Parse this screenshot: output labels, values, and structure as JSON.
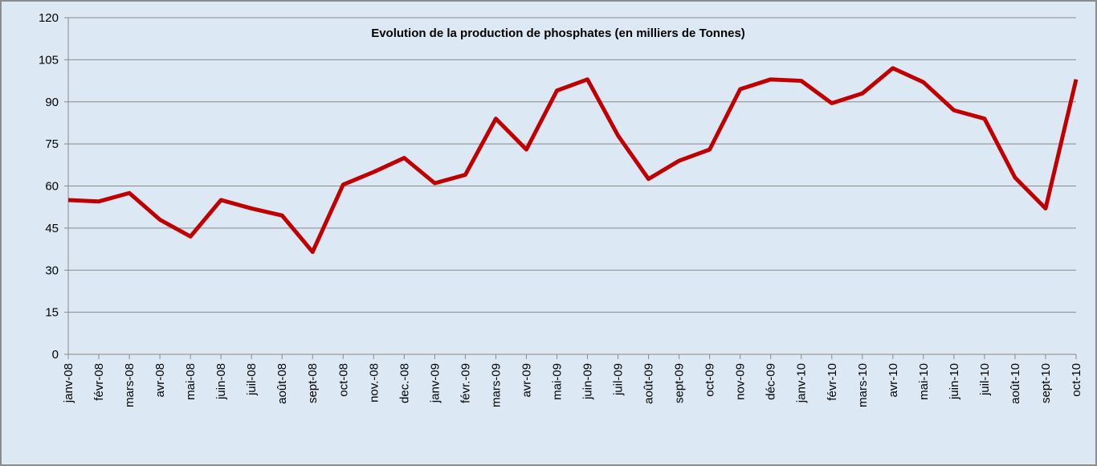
{
  "chart_data": {
    "type": "line",
    "title": "Evolution de la production de phosphates (en milliers de Tonnes)",
    "categories": [
      "janv-08",
      "févr-08",
      "mars-08",
      "avr-08",
      "mai-08",
      "juin-08",
      "juil-08",
      "août-08",
      "sept-08",
      "oct-08",
      "nov.-08",
      "dec.-08",
      "janv-09",
      "févr.-09",
      "mars-09",
      "avr-09",
      "mai-09",
      "juin-09",
      "juil-09",
      "août-09",
      "sept-09",
      "oct-09",
      "nov-09",
      "déc-09",
      "janv-10",
      "févr-10",
      "mars-10",
      "avr-10",
      "mai-10",
      "juin-10",
      "juil-10",
      "août-10",
      "sept-10",
      "oct-10"
    ],
    "values": [
      55,
      54.5,
      57.5,
      48,
      42,
      55,
      52,
      49.5,
      36.5,
      60.5,
      65,
      70,
      61,
      64,
      84,
      73,
      94,
      98,
      78,
      62.5,
      69,
      73,
      94.5,
      98,
      97.5,
      89.5,
      93,
      102,
      97,
      87,
      84,
      63,
      52,
      98
    ],
    "color": "#c00000",
    "ylim": [
      0,
      120
    ],
    "yticks": [
      0,
      15,
      30,
      45,
      60,
      75,
      90,
      105,
      120
    ],
    "grid": true
  }
}
